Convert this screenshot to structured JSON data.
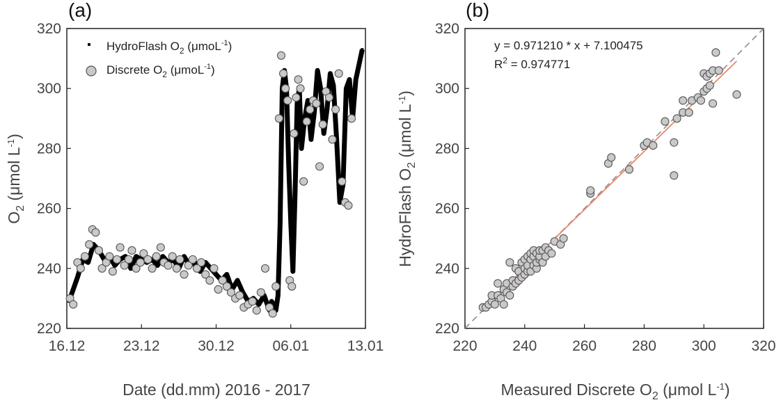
{
  "charts": [
    {
      "panel_label": "(a)",
      "type": "scatter",
      "xlabel": "Date (dd.mm) 2016 - 2017",
      "ylabel_main": "O",
      "ylabel_sub": "2",
      "ylabel_unit": " (μmol L",
      "ylabel_sup": "-1",
      "ylabel_close": ")",
      "xlim_days": [
        0,
        28
      ],
      "ylim": [
        220,
        320
      ],
      "xticks": [
        {
          "label": "16.12",
          "day": 0
        },
        {
          "label": "23.12",
          "day": 7
        },
        {
          "label": "30.12",
          "day": 14
        },
        {
          "label": "06.01",
          "day": 21
        },
        {
          "label": "13.01",
          "day": 28
        }
      ],
      "yticks": [
        220,
        240,
        260,
        280,
        300,
        320
      ],
      "legend": [
        {
          "main": "HydroFlash O",
          "sub": "2",
          "unit": " (μmoL",
          "sup": "-1",
          "close": ")"
        },
        {
          "main": "Discrete O",
          "sub": "2",
          "unit": " (μmoL",
          "sup": "-1",
          "close": ")"
        }
      ],
      "series": [
        {
          "name": "HydroFlash O2 (μmoL-1)",
          "marker": "dot",
          "x": [
            0.2,
            0.5,
            1.0,
            1.5,
            2.0,
            2.5,
            3.0,
            3.5,
            4.0,
            4.5,
            5.0,
            5.5,
            6.0,
            6.5,
            7.0,
            7.5,
            8.0,
            8.5,
            9.0,
            9.5,
            10.0,
            10.5,
            11.0,
            11.5,
            12.0,
            12.5,
            13.0,
            13.5,
            14.0,
            14.5,
            15.0,
            15.5,
            16.0,
            16.5,
            17.0,
            17.5,
            18.0,
            18.5,
            19.0,
            19.2,
            19.4,
            19.6,
            19.8,
            20.0,
            20.2,
            20.4,
            20.6,
            20.8,
            21.0,
            21.2,
            21.4,
            21.6,
            21.8,
            22.0,
            22.3,
            22.6,
            22.9,
            23.2,
            23.5,
            23.8,
            24.1,
            24.4,
            24.7,
            25.0,
            25.3,
            25.6,
            25.9,
            26.2,
            26.5,
            26.8,
            27.1,
            27.4,
            27.7
          ],
          "y": [
            229,
            232,
            237,
            243,
            242,
            248,
            246,
            243,
            244,
            241,
            243,
            244,
            240,
            244,
            243,
            242,
            243,
            241,
            244,
            242,
            243,
            240,
            244,
            241,
            242,
            239,
            242,
            240,
            238,
            236,
            238,
            233,
            236,
            232,
            229,
            230,
            228,
            231,
            226,
            229,
            228,
            226,
            231,
            255,
            300,
            306,
            300,
            275,
            255,
            239,
            265,
            295,
            300,
            280,
            290,
            296,
            283,
            292,
            306,
            300,
            285,
            293,
            305,
            301,
            283,
            262,
            268,
            300,
            303,
            290,
            303,
            308,
            313
          ]
        },
        {
          "name": "Discrete O2 (μmoL-1)",
          "marker": "circle",
          "x": [
            0.3,
            0.6,
            1.0,
            1.3,
            1.7,
            2.1,
            2.4,
            2.7,
            3.0,
            3.3,
            3.7,
            4.0,
            4.3,
            4.7,
            5.0,
            5.4,
            5.8,
            6.1,
            6.5,
            6.9,
            7.2,
            7.6,
            8.0,
            8.4,
            8.8,
            9.1,
            9.5,
            9.9,
            10.3,
            10.6,
            11.0,
            11.4,
            11.8,
            12.2,
            12.6,
            13.0,
            13.4,
            13.8,
            14.2,
            14.6,
            15.0,
            15.4,
            15.8,
            16.2,
            16.6,
            17.0,
            17.4,
            17.8,
            18.2,
            18.6,
            19.0,
            19.3,
            19.6,
            19.9,
            20.1,
            20.3,
            20.5,
            20.7,
            20.9,
            21.1,
            21.3,
            21.5,
            21.7,
            21.9,
            22.2,
            22.5,
            22.8,
            23.1,
            23.4,
            23.7,
            24.0,
            24.3,
            24.6,
            24.9,
            25.2,
            25.5,
            25.8,
            26.1,
            26.4,
            26.7
          ],
          "y": [
            230,
            228,
            242,
            240,
            244,
            248,
            253,
            252,
            246,
            240,
            242,
            244,
            239,
            243,
            247,
            241,
            243,
            246,
            240,
            242,
            245,
            243,
            240,
            244,
            247,
            242,
            241,
            244,
            240,
            243,
            238,
            241,
            243,
            240,
            242,
            238,
            236,
            240,
            233,
            236,
            234,
            232,
            230,
            231,
            227,
            228,
            229,
            226,
            232,
            240,
            227,
            225,
            234,
            290,
            311,
            305,
            300,
            296,
            236,
            234,
            285,
            297,
            303,
            300,
            269,
            289,
            293,
            296,
            295,
            274,
            288,
            299,
            297,
            283,
            293,
            305,
            269,
            262,
            261,
            290
          ]
        }
      ]
    },
    {
      "panel_label": "(b)",
      "type": "scatter",
      "xlabel_main": "Measured Discrete O",
      "xlabel_sub": "2",
      "xlabel_unit": " (μmol L",
      "xlabel_sup": "-1",
      "xlabel_close": ")",
      "ylabel_main": "HydroFlash O",
      "ylabel_sub": "2",
      "ylabel_unit": " (μmol L",
      "ylabel_sup": "-1",
      "ylabel_close": ")",
      "xlim": [
        220,
        320
      ],
      "ylim": [
        220,
        320
      ],
      "xticks": [
        220,
        240,
        260,
        280,
        300,
        320
      ],
      "yticks": [
        220,
        240,
        260,
        280,
        300,
        320
      ],
      "equation": "y = 0.971210 * x + 7.100475",
      "r2_label": "R",
      "r2_sup": "2",
      "r2_value": " = 0.974771",
      "fit": {
        "slope": 0.97121,
        "intercept": 7.100475,
        "x_range": [
          226,
          311
        ],
        "color": "#e8896a"
      },
      "one_to_one": {
        "range": [
          220,
          320
        ],
        "color": "#8c8c8c"
      },
      "points": {
        "x": [
          226,
          227,
          228,
          229,
          229,
          230,
          231,
          231,
          232,
          233,
          233,
          234,
          234,
          235,
          235,
          236,
          236,
          237,
          237,
          238,
          238,
          239,
          239,
          240,
          240,
          240,
          241,
          241,
          241,
          242,
          242,
          242,
          243,
          243,
          243,
          244,
          244,
          244,
          245,
          245,
          245,
          246,
          246,
          247,
          247,
          248,
          249,
          250,
          252,
          253,
          262,
          262,
          268,
          269,
          275,
          280,
          281,
          283,
          287,
          290,
          290,
          291,
          293,
          293,
          295,
          296,
          298,
          299,
          300,
          300,
          301,
          301,
          302,
          302,
          303,
          303,
          304,
          305,
          311
        ],
        "y": [
          227,
          227,
          228,
          229,
          231,
          228,
          231,
          235,
          230,
          228,
          233,
          232,
          235,
          231,
          242,
          234,
          236,
          235,
          240,
          236,
          239,
          237,
          242,
          238,
          240,
          243,
          239,
          241,
          244,
          239,
          243,
          245,
          241,
          244,
          246,
          240,
          242,
          245,
          243,
          244,
          246,
          242,
          246,
          244,
          247,
          246,
          245,
          249,
          248,
          250,
          265,
          266,
          275,
          277,
          273,
          281,
          282,
          281,
          289,
          282,
          271,
          290,
          292,
          296,
          292,
          296,
          297,
          296,
          299,
          305,
          300,
          304,
          305,
          301,
          306,
          295,
          312,
          306,
          298
        ]
      }
    }
  ]
}
